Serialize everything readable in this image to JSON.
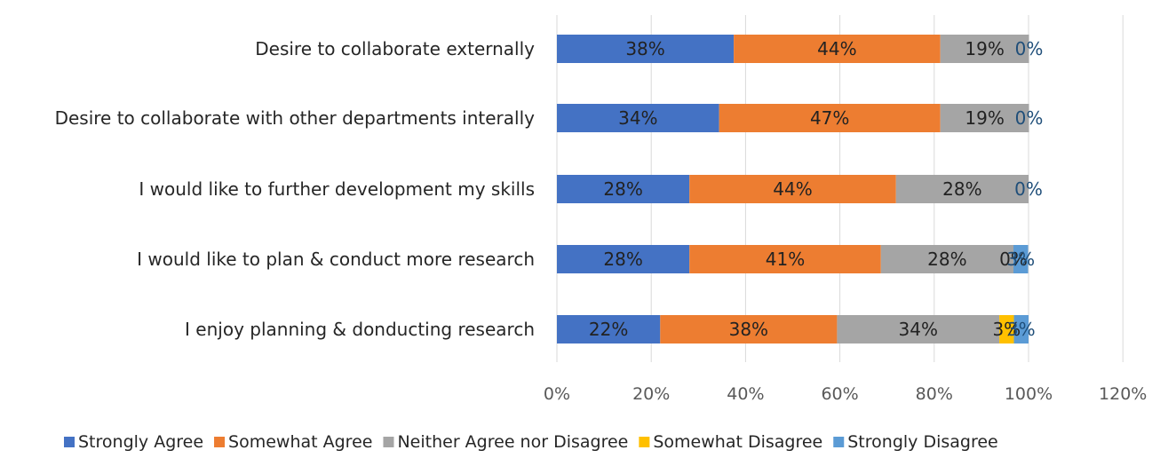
{
  "chart_data": {
    "type": "bar",
    "orientation": "horizontal",
    "stacked": true,
    "categories": [
      "Desire to collaborate externally",
      "Desire to collaborate with other departments interally",
      "I would like to further development my skills",
      "I would like to plan & conduct more research",
      "I enjoy planning & donducting research"
    ],
    "series": [
      {
        "name": "Strongly Agree",
        "color": "#4472C4",
        "values": [
          37.5,
          34.4,
          28.1,
          28.1,
          21.9
        ],
        "labels": [
          "38%",
          "34%",
          "28%",
          "28%",
          "22%"
        ]
      },
      {
        "name": "Somewhat Agree",
        "color": "#ED7D31",
        "values": [
          43.8,
          46.9,
          43.8,
          40.6,
          37.5
        ],
        "labels": [
          "44%",
          "47%",
          "44%",
          "41%",
          "38%"
        ]
      },
      {
        "name": "Neither Agree nor Disagree",
        "color": "#A5A5A5",
        "values": [
          18.8,
          18.8,
          28.1,
          28.1,
          34.4
        ],
        "labels": [
          "19%",
          "19%",
          "28%",
          "28%",
          "34%"
        ]
      },
      {
        "name": "Somewhat Disagree",
        "color": "#FFC000",
        "values": [
          0,
          0,
          0,
          0,
          3.1
        ],
        "labels": [
          "",
          "",
          "",
          "0%",
          "3%"
        ]
      },
      {
        "name": "Strongly Disagree",
        "color": "#5B9BD5",
        "values": [
          0,
          0,
          0,
          3.1,
          3.1
        ],
        "labels": [
          "0%",
          "0%",
          "0%",
          "3%",
          "3%"
        ]
      }
    ],
    "xlim": [
      0,
      120
    ],
    "xticks": [
      "0%",
      "20%",
      "40%",
      "60%",
      "80%",
      "100%",
      "120%"
    ],
    "grid": true,
    "legend": "bottom"
  }
}
